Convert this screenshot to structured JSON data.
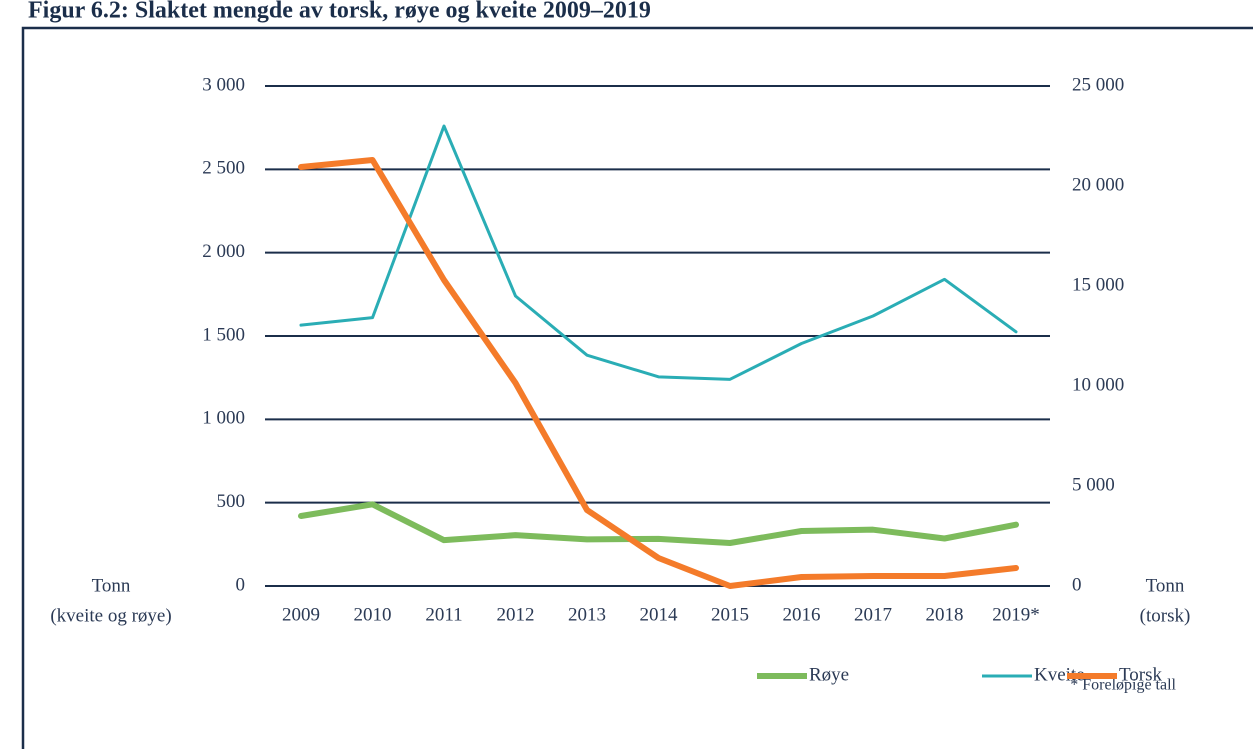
{
  "chart_data": {
    "type": "line",
    "title": "Figur 6.2: Slaktet mengde av torsk, røye og kveite 2009–2019",
    "categories": [
      "2009",
      "2010",
      "2011",
      "2012",
      "2013",
      "2014",
      "2015",
      "2016",
      "2017",
      "2018",
      "2019*"
    ],
    "series": [
      {
        "name": "Røye",
        "color": "#7dbb5c",
        "values": [
          420,
          490,
          275,
          305,
          280,
          283,
          258,
          330,
          338,
          285,
          368
        ]
      },
      {
        "name": "Kveite",
        "color": "#2aadb5",
        "values": [
          1565,
          1610,
          2760,
          1740,
          1385,
          1255,
          1240,
          1455,
          1620,
          1840,
          1525
        ]
      },
      {
        "name": "Torsk",
        "color": "#f47b2a",
        "axis": "y2",
        "values": [
          20950,
          21300,
          15300,
          10150,
          3800,
          1400,
          0,
          450,
          500,
          500,
          900
        ]
      }
    ],
    "ylim": [
      0,
      3000
    ],
    "yticks": [
      0,
      500,
      {
        "value": 1000,
        "label": "1 000"
      },
      {
        "value": 1500,
        "label": "1 500"
      },
      {
        "value": 2000,
        "label": "2 000"
      },
      {
        "value": 2500,
        "label": "2 500"
      },
      {
        "value": 3000,
        "label": "3 000"
      }
    ],
    "y2lim": [
      0,
      25000
    ],
    "y2ticks": [
      0,
      {
        "value": 5000,
        "label": "5 000"
      },
      {
        "value": 10000,
        "label": "10 000"
      },
      {
        "value": 15000,
        "label": "15 000"
      },
      {
        "value": 20000,
        "label": "20 000"
      },
      {
        "value": 25000,
        "label": "25 000"
      }
    ],
    "ylabel": [
      "Tonn",
      "(kveite og røye)"
    ],
    "y2label": [
      "Tonn",
      "(torsk)"
    ],
    "note": "* Foreløpige tall",
    "grid": true,
    "legend": "bottom-right"
  }
}
